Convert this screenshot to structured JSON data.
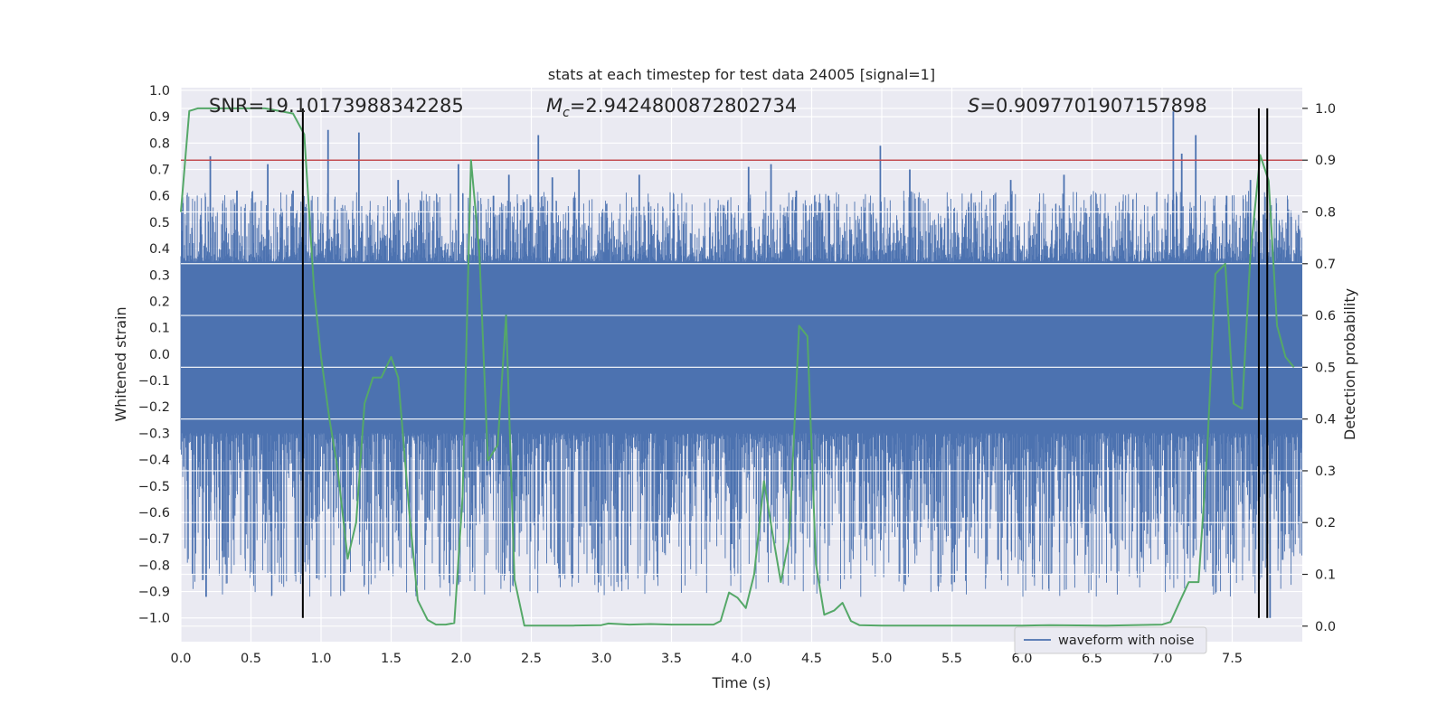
{
  "chart_data": {
    "type": "line",
    "title": "stats at each timestep for test data 24005 [signal=1]",
    "xlabel": "Time (s)",
    "ylabel_left": "Whitened strain",
    "ylabel_right": "Detection probability",
    "xlim": [
      0.0,
      8.0
    ],
    "ylim_left": [
      -1.09,
      1.01
    ],
    "ylim_right": [
      -0.03,
      1.04
    ],
    "x_ticks": [
      "0.0",
      "0.5",
      "1.0",
      "1.5",
      "2.0",
      "2.5",
      "3.0",
      "3.5",
      "4.0",
      "4.5",
      "5.0",
      "5.5",
      "6.0",
      "6.5",
      "7.0",
      "7.5"
    ],
    "y_left_ticks": [
      "1.0",
      "0.9",
      "0.8",
      "0.7",
      "0.6",
      "0.5",
      "0.4",
      "0.3",
      "0.2",
      "0.1",
      "0.0",
      "−0.1",
      "−0.2",
      "−0.3",
      "−0.4",
      "−0.5",
      "−0.6",
      "−0.7",
      "−0.8",
      "−0.9",
      "−1.0"
    ],
    "y_right_ticks": [
      "1.0",
      "0.9",
      "0.8",
      "0.7",
      "0.6",
      "0.5",
      "0.4",
      "0.3",
      "0.2",
      "0.1",
      "0.0"
    ],
    "grid": true,
    "legend_position": "bottom-right",
    "annotations": {
      "snr": "SNR=19.10173988342285",
      "mc_symbol": "M",
      "mc_sub": "c",
      "mc_value": "=2.9424800872802734",
      "s_symbol": "S",
      "s_value": "=0.9097701907157898"
    },
    "series": [
      {
        "name": "waveform with noise",
        "axis": "left",
        "color": "#4c72b0",
        "description_values": {
          "core_band": [
            -0.3,
            0.35
          ],
          "typical_peak_range": [
            -0.62,
            0.62
          ],
          "x_range": [
            0.0,
            8.0
          ]
        },
        "spikes": [
          [
            0.18,
            -0.92
          ],
          [
            0.21,
            0.75
          ],
          [
            0.3,
            -0.77
          ],
          [
            0.4,
            0.62
          ],
          [
            0.62,
            0.72
          ],
          [
            0.8,
            0.62
          ],
          [
            0.97,
            -0.85
          ],
          [
            1.05,
            0.85
          ],
          [
            1.17,
            -0.7
          ],
          [
            1.27,
            0.84
          ],
          [
            1.55,
            0.66
          ],
          [
            1.76,
            -0.62
          ],
          [
            1.98,
            0.72
          ],
          [
            2.23,
            0.6
          ],
          [
            2.34,
            0.68
          ],
          [
            2.38,
            -0.75
          ],
          [
            2.55,
            0.83
          ],
          [
            2.65,
            0.67
          ],
          [
            2.84,
            0.7
          ],
          [
            2.92,
            -0.65
          ],
          [
            3.27,
            0.68
          ],
          [
            3.48,
            -0.62
          ],
          [
            3.93,
            -0.72
          ],
          [
            4.05,
            0.71
          ],
          [
            4.21,
            0.72
          ],
          [
            4.39,
            0.62
          ],
          [
            4.62,
            0.6
          ],
          [
            4.93,
            -0.7
          ],
          [
            4.99,
            0.79
          ],
          [
            5.2,
            0.7
          ],
          [
            5.58,
            -0.62
          ],
          [
            5.83,
            -0.78
          ],
          [
            5.92,
            0.66
          ],
          [
            6.3,
            0.68
          ],
          [
            6.63,
            -0.68
          ],
          [
            6.85,
            -0.75
          ],
          [
            7.02,
            -0.72
          ],
          [
            7.08,
            0.92
          ],
          [
            7.14,
            0.76
          ],
          [
            7.24,
            0.83
          ],
          [
            7.46,
            0.6
          ],
          [
            7.63,
            0.66
          ],
          [
            7.77,
            -1.0
          ],
          [
            7.86,
            -0.78
          ],
          [
            7.92,
            0.52
          ]
        ]
      },
      {
        "name": "",
        "axis": "right",
        "color": "#55a868",
        "x": [
          0.0,
          0.06,
          0.12,
          0.2,
          0.4,
          0.6,
          0.8,
          0.88,
          0.95,
          1.0,
          1.06,
          1.12,
          1.19,
          1.25,
          1.31,
          1.37,
          1.43,
          1.5,
          1.55,
          1.63,
          1.69,
          1.76,
          1.82,
          1.89,
          1.95,
          2.01,
          2.07,
          2.13,
          2.19,
          2.26,
          2.32,
          2.38,
          2.45,
          2.51,
          2.8,
          3.0,
          3.05,
          3.2,
          3.35,
          3.5,
          3.8,
          3.85,
          3.91,
          3.97,
          4.03,
          4.09,
          4.16,
          4.22,
          4.28,
          4.34,
          4.41,
          4.47,
          4.53,
          4.59,
          4.66,
          4.72,
          4.78,
          4.84,
          5.0,
          6.0,
          6.2,
          6.6,
          7.0,
          7.06,
          7.13,
          7.19,
          7.26,
          7.32,
          7.38,
          7.45,
          7.51,
          7.57,
          7.63,
          7.7,
          7.76,
          7.82,
          7.88,
          7.94
        ],
        "values": [
          0.8,
          0.995,
          1.0,
          1.0,
          1.0,
          1.0,
          0.99,
          0.95,
          0.65,
          0.52,
          0.4,
          0.3,
          0.13,
          0.2,
          0.43,
          0.48,
          0.48,
          0.52,
          0.48,
          0.22,
          0.05,
          0.012,
          0.003,
          0.003,
          0.006,
          0.25,
          0.9,
          0.72,
          0.32,
          0.35,
          0.6,
          0.09,
          0.001,
          0.001,
          0.001,
          0.002,
          0.005,
          0.003,
          0.004,
          0.003,
          0.003,
          0.01,
          0.065,
          0.055,
          0.035,
          0.1,
          0.28,
          0.18,
          0.085,
          0.17,
          0.58,
          0.56,
          0.12,
          0.022,
          0.03,
          0.045,
          0.01,
          0.002,
          0.001,
          0.001,
          0.002,
          0.001,
          0.003,
          0.008,
          0.05,
          0.085,
          0.085,
          0.33,
          0.68,
          0.7,
          0.43,
          0.42,
          0.72,
          0.91,
          0.86,
          0.58,
          0.52,
          0.5
        ]
      }
    ],
    "threshold_line": {
      "axis": "right",
      "y": 0.9,
      "color": "#c44e52"
    },
    "vertical_lines": {
      "x": [
        0.87,
        7.69,
        7.75
      ],
      "color": "#000000"
    }
  }
}
